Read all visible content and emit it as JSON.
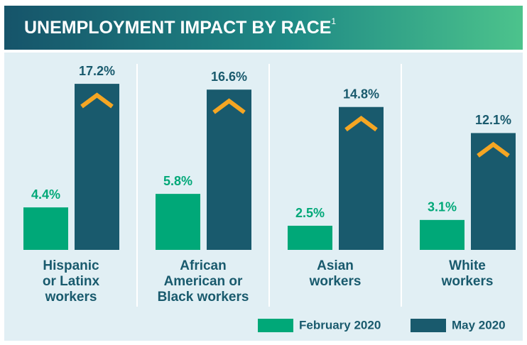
{
  "chart_data": {
    "type": "bar",
    "title": "UNEMPLOYMENT IMPACT BY RACE",
    "title_note": "1",
    "categories": [
      "Hispanic\nor Latinx\nworkers",
      "African\nAmerican or\nBlack workers",
      "Asian\nworkers",
      "White\nworkers"
    ],
    "series": [
      {
        "name": "February 2020",
        "color": "#00a878",
        "values": [
          4.4,
          5.8,
          2.5,
          3.1
        ],
        "value_labels": [
          "4.4%",
          "5.8%",
          "2.5%",
          "3.1%"
        ]
      },
      {
        "name": "May 2020",
        "color": "#195a6d",
        "values": [
          17.2,
          16.6,
          14.8,
          12.1
        ],
        "value_labels": [
          "17.2%",
          "16.6%",
          "14.8%",
          "12.1%"
        ]
      }
    ]
  }
}
